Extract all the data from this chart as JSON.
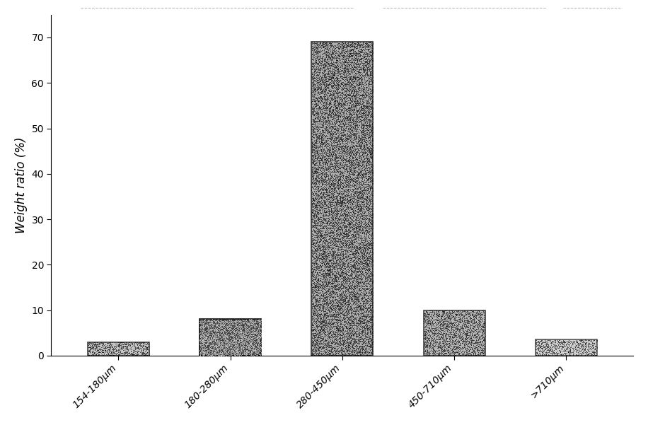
{
  "categories": [
    "154-180μm",
    "180-280μm",
    "280-450μm",
    "450-710μm",
    ">710μm"
  ],
  "values": [
    3,
    8,
    69,
    10,
    3.5
  ],
  "ylabel": "Weight ratio (%)",
  "ylim": [
    0,
    75
  ],
  "yticks": [
    0,
    10,
    20,
    30,
    40,
    50,
    60,
    70
  ],
  "bar_colors": [
    "#c8c8c8",
    "#404040",
    "#b0b0b0",
    "#b8b8b8",
    "#d0d0d0"
  ],
  "bar_edgecolors": [
    "#444444",
    "#111111",
    "#333333",
    "#444444",
    "#555555"
  ],
  "noise_density": [
    0.3,
    0.5,
    0.35,
    0.3,
    0.25
  ],
  "noise_dark": [
    true,
    false,
    true,
    true,
    true
  ],
  "background_color": "#ffffff",
  "label_fontsize": 12,
  "tick_fontsize": 10,
  "bar_width": 0.55
}
